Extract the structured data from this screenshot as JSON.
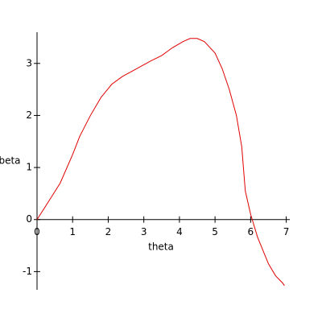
{
  "chart_data": {
    "type": "line",
    "x_label": "theta",
    "y_label": "beta",
    "x": [
      0,
      0.3,
      0.65,
      1,
      1.2,
      1.5,
      1.8,
      2.1,
      2.4,
      2.8,
      3.2,
      3.5,
      3.8,
      4.1,
      4.3,
      4.5,
      4.7,
      5.0,
      5.2,
      5.4,
      5.6,
      5.75,
      5.85,
      6.0,
      6.2,
      6.5,
      6.7,
      6.9,
      6.95
    ],
    "series": [
      {
        "color": "#e00000",
        "values": [
          0,
          0.32,
          0.7,
          1.25,
          1.6,
          2.0,
          2.35,
          2.6,
          2.75,
          2.9,
          3.05,
          3.15,
          3.3,
          3.42,
          3.48,
          3.48,
          3.42,
          3.2,
          2.9,
          2.5,
          2.0,
          1.4,
          0.55,
          0.1,
          -0.35,
          -0.85,
          -1.08,
          -1.22,
          -1.27
        ]
      }
    ],
    "xlim": [
      0,
      7.1
    ],
    "ylim": [
      -1.35,
      3.6
    ],
    "xticks": [
      0,
      1,
      2,
      3,
      4,
      5,
      6,
      7
    ],
    "yticks": [
      -1,
      0,
      1,
      2,
      3
    ]
  }
}
